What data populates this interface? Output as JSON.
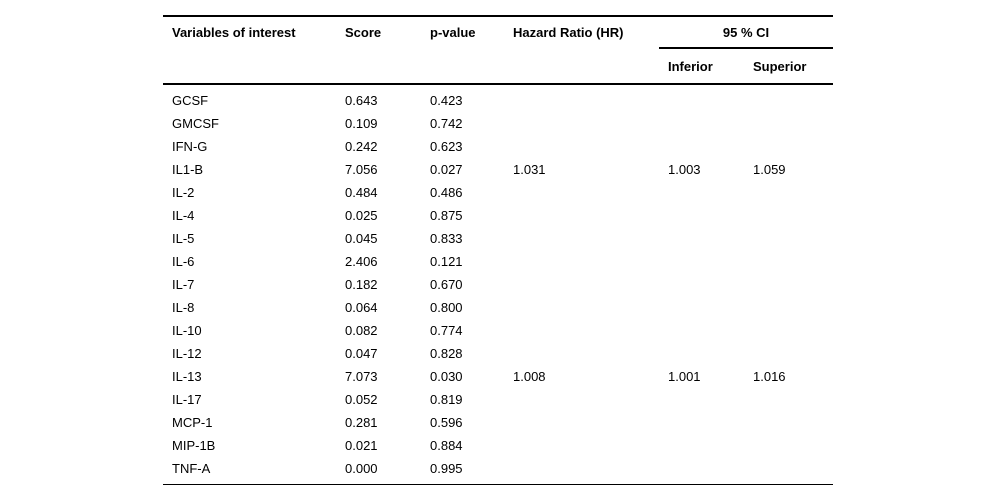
{
  "table": {
    "columns": {
      "variables": "Variables of interest",
      "score": "Score",
      "p_value": "p-value",
      "hazard_ratio": "Hazard Ratio (HR)",
      "ci_group": "95 % CI",
      "ci_inferior": "Inferior",
      "ci_superior": "Superior"
    },
    "rows": [
      {
        "variable": "GCSF",
        "score": "0.643",
        "p_value": "0.423",
        "hazard_ratio": "",
        "ci_inferior": "",
        "ci_superior": ""
      },
      {
        "variable": "GMCSF",
        "score": "0.109",
        "p_value": "0.742",
        "hazard_ratio": "",
        "ci_inferior": "",
        "ci_superior": ""
      },
      {
        "variable": "IFN-G",
        "score": "0.242",
        "p_value": "0.623",
        "hazard_ratio": "",
        "ci_inferior": "",
        "ci_superior": ""
      },
      {
        "variable": "IL1-B",
        "score": "7.056",
        "p_value": "0.027",
        "hazard_ratio": "1.031",
        "ci_inferior": "1.003",
        "ci_superior": "1.059"
      },
      {
        "variable": "IL-2",
        "score": "0.484",
        "p_value": "0.486",
        "hazard_ratio": "",
        "ci_inferior": "",
        "ci_superior": ""
      },
      {
        "variable": "IL-4",
        "score": "0.025",
        "p_value": "0.875",
        "hazard_ratio": "",
        "ci_inferior": "",
        "ci_superior": ""
      },
      {
        "variable": "IL-5",
        "score": "0.045",
        "p_value": "0.833",
        "hazard_ratio": "",
        "ci_inferior": "",
        "ci_superior": ""
      },
      {
        "variable": "IL-6",
        "score": "2.406",
        "p_value": "0.121",
        "hazard_ratio": "",
        "ci_inferior": "",
        "ci_superior": ""
      },
      {
        "variable": "IL-7",
        "score": "0.182",
        "p_value": "0.670",
        "hazard_ratio": "",
        "ci_inferior": "",
        "ci_superior": ""
      },
      {
        "variable": "IL-8",
        "score": "0.064",
        "p_value": "0.800",
        "hazard_ratio": "",
        "ci_inferior": "",
        "ci_superior": ""
      },
      {
        "variable": "IL-10",
        "score": "0.082",
        "p_value": "0.774",
        "hazard_ratio": "",
        "ci_inferior": "",
        "ci_superior": ""
      },
      {
        "variable": "IL-12",
        "score": "0.047",
        "p_value": "0.828",
        "hazard_ratio": "",
        "ci_inferior": "",
        "ci_superior": ""
      },
      {
        "variable": "IL-13",
        "score": "7.073",
        "p_value": "0.030",
        "hazard_ratio": "1.008",
        "ci_inferior": "1.001",
        "ci_superior": "1.016"
      },
      {
        "variable": "IL-17",
        "score": "0.052",
        "p_value": "0.819",
        "hazard_ratio": "",
        "ci_inferior": "",
        "ci_superior": ""
      },
      {
        "variable": "MCP-1",
        "score": "0.281",
        "p_value": "0.596",
        "hazard_ratio": "",
        "ci_inferior": "",
        "ci_superior": ""
      },
      {
        "variable": "MIP-1B",
        "score": "0.021",
        "p_value": "0.884",
        "hazard_ratio": "",
        "ci_inferior": "",
        "ci_superior": ""
      },
      {
        "variable": "TNF-A",
        "score": "0.000",
        "p_value": "0.995",
        "hazard_ratio": "",
        "ci_inferior": "",
        "ci_superior": ""
      }
    ]
  }
}
